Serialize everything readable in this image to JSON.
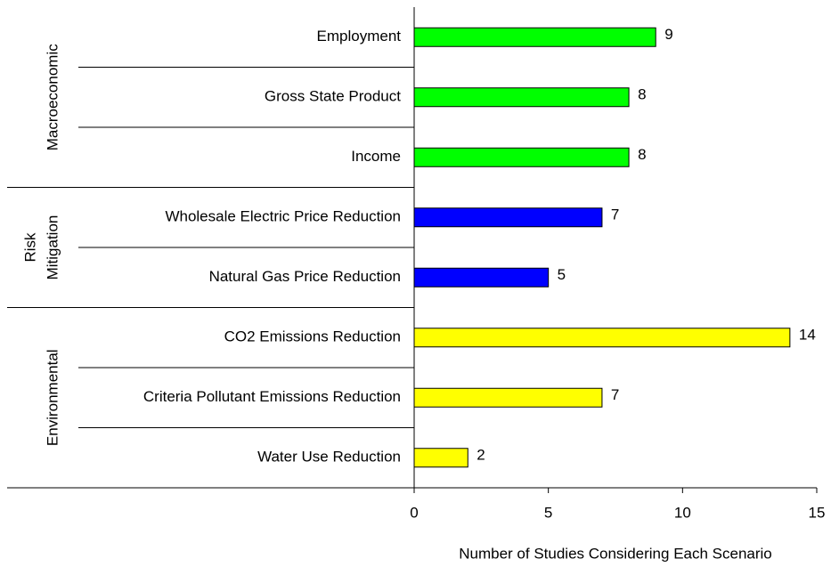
{
  "chart_data": {
    "type": "bar",
    "orientation": "horizontal",
    "xlabel": "Number of Studies Considering Each Scenario",
    "xlim": [
      0,
      15
    ],
    "xticks": [
      0,
      5,
      10,
      15
    ],
    "groups": [
      {
        "name_lines": [
          "Macroeconomic"
        ],
        "color": "#00ff00",
        "categories": [
          "Employment",
          "Gross State Product",
          "Income"
        ],
        "values": [
          9,
          8,
          8
        ]
      },
      {
        "name_lines": [
          "Risk",
          "Mitigation"
        ],
        "color": "#0000ff",
        "categories": [
          "Wholesale Electric Price Reduction",
          "Natural Gas Price Reduction"
        ],
        "values": [
          7,
          5
        ]
      },
      {
        "name_lines": [
          "Environmental"
        ],
        "color": "#ffff00",
        "categories": [
          "CO2 Emissions Reduction",
          "Criteria Pollutant Emissions Reduction",
          "Water Use Reduction"
        ],
        "values": [
          14,
          7,
          2
        ]
      }
    ]
  }
}
